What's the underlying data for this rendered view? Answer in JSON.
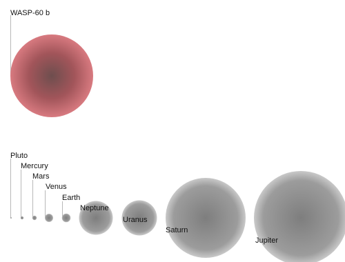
{
  "highlight": {
    "name": "WASP-60 b",
    "color": "#c45a5f"
  },
  "planets": [
    {
      "name": "Pluto"
    },
    {
      "name": "Mercury"
    },
    {
      "name": "Mars"
    },
    {
      "name": "Venus"
    },
    {
      "name": "Earth"
    },
    {
      "name": "Neptune"
    },
    {
      "name": "Uranus"
    },
    {
      "name": "Saturn"
    },
    {
      "name": "Jupiter"
    }
  ],
  "colors": {
    "planet": "#8a8a8a",
    "background": "#ffffff"
  }
}
